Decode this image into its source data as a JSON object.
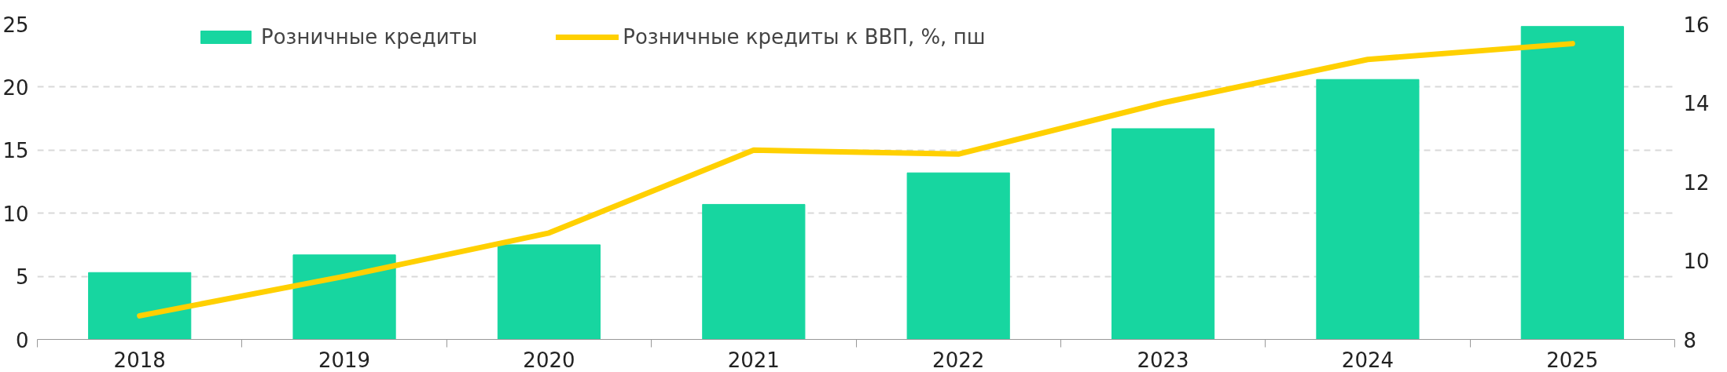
{
  "chart_data": {
    "type": "bar",
    "categories": [
      "2018",
      "2019",
      "2020",
      "2021",
      "2022",
      "2023",
      "2024",
      "2025"
    ],
    "series": [
      {
        "name": "Розничные кредиты",
        "color": "#17d6a0",
        "values": [
          5.3,
          6.7,
          7.5,
          10.7,
          13.2,
          16.7,
          20.6,
          24.8
        ]
      },
      {
        "name": "Розничные кредиты к ВВП, %, пш",
        "type": "line",
        "axis": "y2",
        "color": "#ffd000",
        "values": [
          8.6,
          9.6,
          10.7,
          12.8,
          12.7,
          14.0,
          15.1,
          15.5
        ]
      }
    ],
    "ylim": [
      0,
      25
    ],
    "yticks": [
      0,
      5,
      10,
      15,
      20,
      25
    ],
    "y2lim": [
      8,
      16
    ],
    "y2ticks": [
      8,
      10,
      12,
      14,
      16
    ],
    "grid": "y",
    "legend": "top left",
    "line_style": "solid",
    "marker": "none"
  }
}
